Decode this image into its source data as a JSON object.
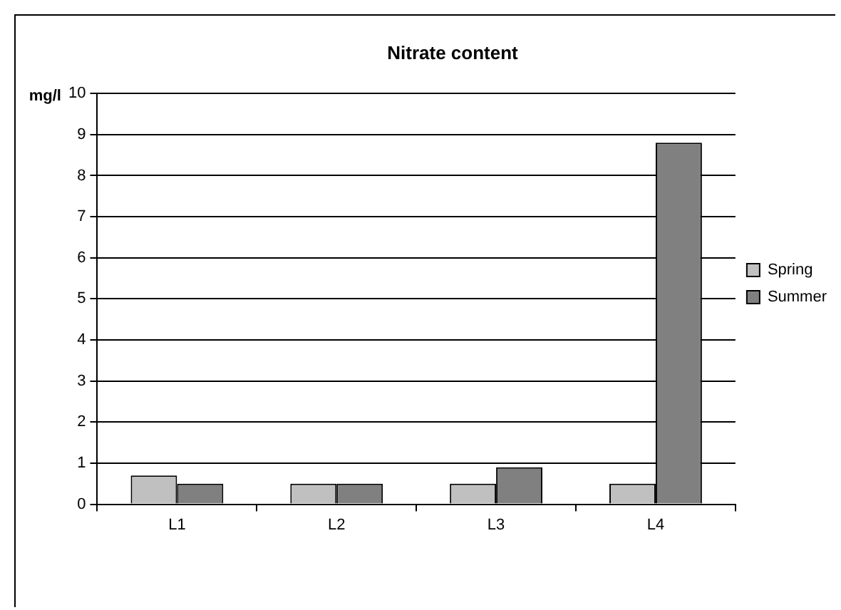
{
  "chart_data": {
    "type": "bar",
    "title": "Nitrate content",
    "ylabel": "mg/l",
    "categories": [
      "L1",
      "L2",
      "L3",
      "L4"
    ],
    "series": [
      {
        "name": "Spring",
        "color": "#c0c0c0",
        "values": [
          0.7,
          0.5,
          0.5,
          0.5
        ]
      },
      {
        "name": "Summer",
        "color": "#808080",
        "values": [
          0.5,
          0.5,
          0.9,
          8.8
        ]
      }
    ],
    "ylim": [
      0,
      10
    ],
    "yticks": [
      0,
      1,
      2,
      3,
      4,
      5,
      6,
      7,
      8,
      9,
      10
    ],
    "grid": "y",
    "legend": "right"
  }
}
